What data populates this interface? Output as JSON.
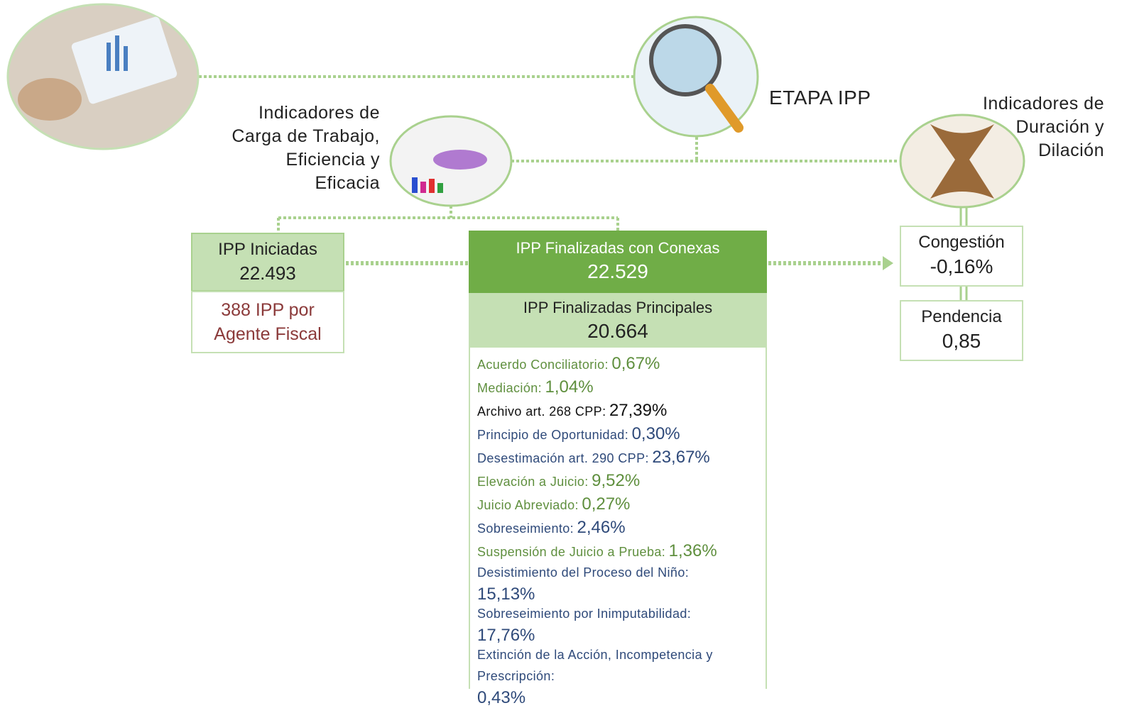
{
  "stage_title": "ETAPA IPP",
  "workload_label": [
    "Indicadores de",
    "Carga de Trabajo,",
    "Eficiencia y",
    "Eficacia"
  ],
  "duration_label": [
    "Indicadores de",
    "Duración y",
    "Dilación"
  ],
  "initiated": {
    "title": "IPP Iniciadas",
    "value": "22.493",
    "per_agent": [
      "388 IPP por",
      "Agente Fiscal"
    ]
  },
  "finalized_with_related": {
    "title": "IPP Finalizadas con Conexas",
    "value": "22.529"
  },
  "finalized_main": {
    "title": "IPP Finalizadas Principales",
    "value": "20.664"
  },
  "breakdown": [
    {
      "label": "Acuerdo Conciliatorio:",
      "value": "0,67%"
    },
    {
      "label": "Mediación:",
      "value": "1,04%"
    },
    {
      "label": "Archivo art. 268 CPP:",
      "value": "27,39%"
    },
    {
      "label": "Principio de Oportunidad:",
      "value": "0,30%"
    },
    {
      "label": "Desestimación art. 290 CPP:",
      "value": "23,67%"
    },
    {
      "label": "Elevación a Juicio:",
      "value": "9,52%"
    },
    {
      "label": "Juicio Abreviado:",
      "value": "0,27%"
    },
    {
      "label": "Sobreseimiento:",
      "value": "2,46%"
    },
    {
      "label": "Suspensión de Juicio a Prueba:",
      "value": "1,36%"
    },
    {
      "label": "Desistimiento del Proceso del Niño:",
      "value": "15,13%"
    },
    {
      "label": "Sobreseimiento por Inimputabilidad:",
      "value": "17,76%"
    },
    {
      "label": "Extinción de la Acción, Incompetencia y Prescripción:",
      "value": "0,43%"
    }
  ],
  "congestion": {
    "title": "Congestión",
    "value": "-0,16%"
  },
  "pending": {
    "title": "Pendencia",
    "value": "0,85"
  }
}
